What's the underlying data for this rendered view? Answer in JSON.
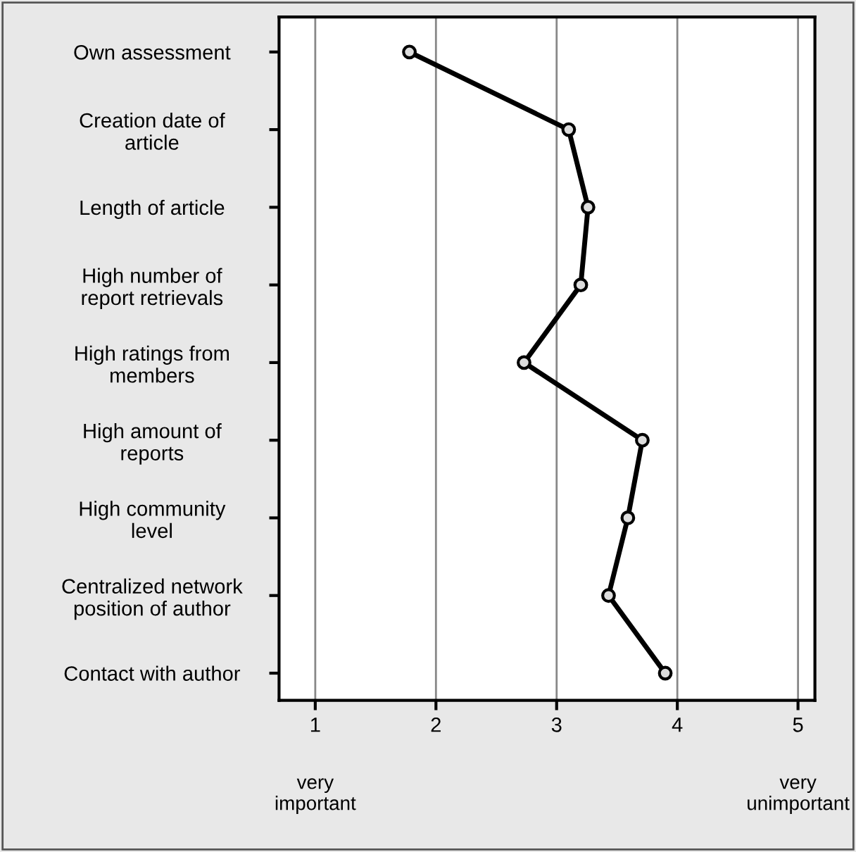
{
  "chart_data": {
    "type": "line",
    "orientation": "horizontal",
    "categories": [
      "Own assessment",
      "Creation date of\narticle",
      "Length of article",
      "High number of\nreport retrievals",
      "High ratings from\nmembers",
      "High amount of\nreports",
      "High community\nlevel",
      "Centralized network\nposition of author",
      "Contact with author"
    ],
    "series": [
      {
        "color": "#000000",
        "values": [
          1.78,
          3.1,
          3.26,
          3.2,
          2.73,
          3.71,
          3.59,
          3.43,
          3.9
        ]
      }
    ],
    "xlim": [
      0.7,
      5.14
    ],
    "xticks": [
      1,
      2,
      3,
      4,
      5
    ],
    "annotations": [
      "very\nimportant",
      "very\nunimportant"
    ],
    "grid": "x",
    "marker": "circle",
    "line_style": "solid",
    "legend": false
  }
}
